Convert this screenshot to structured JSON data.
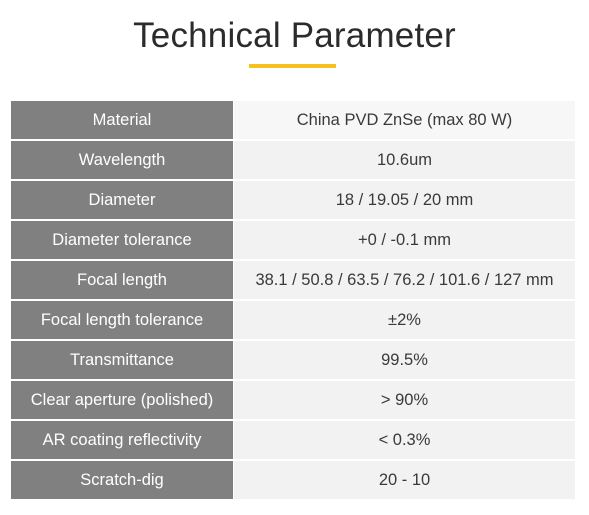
{
  "heading": {
    "title": "Technical Parameter"
  },
  "accent_color": "#f5c21b",
  "label_background": "#808080",
  "value_background": "#f2f2f2",
  "rows": [
    {
      "label": "Material",
      "value": "China PVD ZnSe (max 80 W)"
    },
    {
      "label": "Wavelength",
      "value": "10.6um"
    },
    {
      "label": "Diameter",
      "value": "18 / 19.05 / 20 mm"
    },
    {
      "label": "Diameter tolerance",
      "value": "+0 / -0.1 mm"
    },
    {
      "label": "Focal length",
      "value": "38.1 / 50.8 / 63.5 / 76.2 / 101.6 / 127 mm"
    },
    {
      "label": "Focal length tolerance",
      "value": "±2%"
    },
    {
      "label": "Transmittance",
      "value": "99.5%"
    },
    {
      "label": "Clear aperture (polished)",
      "value": "> 90%"
    },
    {
      "label": "AR coating reflectivity",
      "value": "< 0.3%"
    },
    {
      "label": "Scratch-dig",
      "value": "20 - 10"
    }
  ]
}
